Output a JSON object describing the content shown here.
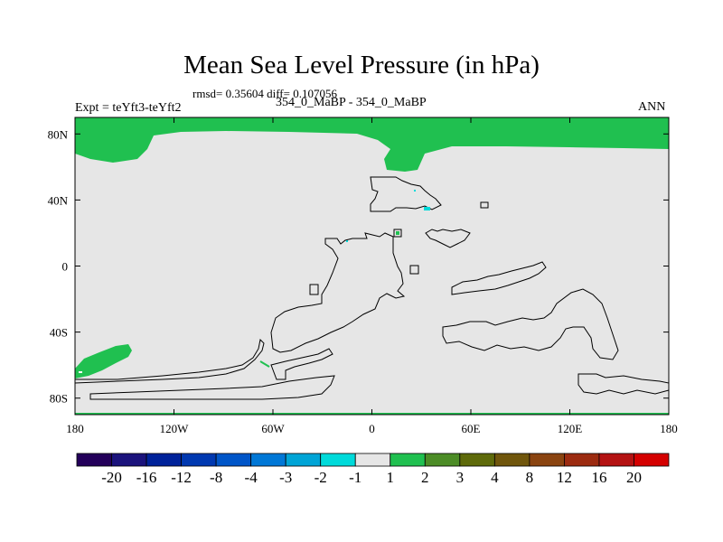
{
  "chart_data": {
    "type": "heatmap",
    "title": "Mean Sea Level Pressure (in hPa)",
    "stats_text": "rmsd= 0.35604 diff= 0.107056",
    "left_label": "Expt = teYft3-teYft2",
    "center_label": "354_0_MaBP - 354_0_MaBP",
    "right_label": "ANN",
    "x_range": [
      -180,
      180
    ],
    "y_range": [
      -90,
      90
    ],
    "x_ticks": [
      {
        "value": -180,
        "label": "180"
      },
      {
        "value": -120,
        "label": "120W"
      },
      {
        "value": -60,
        "label": "60W"
      },
      {
        "value": 0,
        "label": "0"
      },
      {
        "value": 60,
        "label": "60E"
      },
      {
        "value": 120,
        "label": "120E"
      },
      {
        "value": 180,
        "label": "180"
      }
    ],
    "y_ticks": [
      {
        "value": 80,
        "label": "80N"
      },
      {
        "value": 40,
        "label": "40N"
      },
      {
        "value": 0,
        "label": "0"
      },
      {
        "value": -40,
        "label": "40S"
      },
      {
        "value": -80,
        "label": "80S"
      }
    ],
    "background_bin_color": "#e6e6e6",
    "colorbar": {
      "colors": [
        "#23005a",
        "#1b137c",
        "#00229a",
        "#0038b0",
        "#0055c8",
        "#0077d6",
        "#00a4d6",
        "#00dada",
        "#e6e6e6",
        "#20c050",
        "#4c8c26",
        "#5e6a0a",
        "#70560c",
        "#8a4410",
        "#9c2b10",
        "#b41212",
        "#d40000"
      ],
      "labels": [
        "-20",
        "-16",
        "-12",
        "-8",
        "-4",
        "-3",
        "-2",
        "-1",
        "1",
        "2",
        "3",
        "4",
        "8",
        "12",
        "16",
        "20"
      ]
    }
  }
}
